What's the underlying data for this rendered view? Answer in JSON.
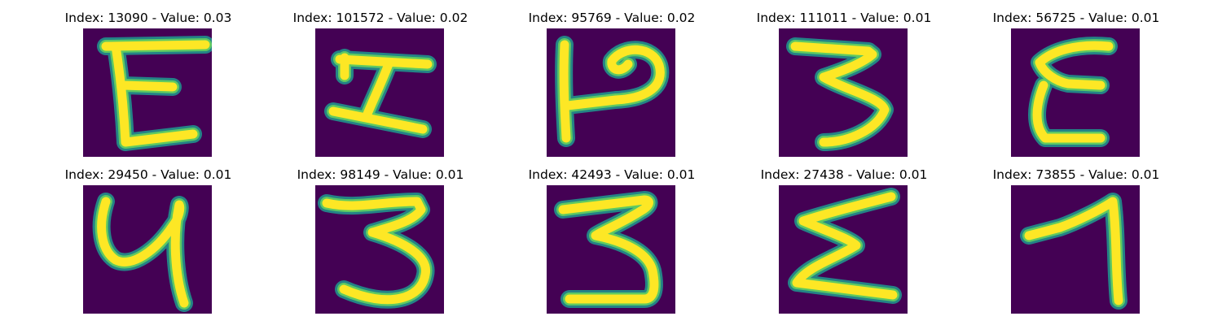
{
  "colors": {
    "background": "#440154",
    "stroke_outer": "#21918c",
    "stroke_mid": "#5ec962",
    "stroke_core": "#fde725"
  },
  "panels": [
    {
      "title": "Index: 13090 - Value: 0.03",
      "glyph": "E"
    },
    {
      "title": "Index: 101572 - Value: 0.02",
      "glyph": "I"
    },
    {
      "title": "Index: 95769 - Value: 0.02",
      "glyph": "P"
    },
    {
      "title": "Index: 111011 - Value: 0.01",
      "glyph": "3"
    },
    {
      "title": "Index: 56725 - Value: 0.01",
      "glyph": "E"
    },
    {
      "title": "Index: 29450 - Value: 0.01",
      "glyph": "4"
    },
    {
      "title": "Index: 98149 - Value: 0.01",
      "glyph": "3"
    },
    {
      "title": "Index: 42493 - Value: 0.01",
      "glyph": "3"
    },
    {
      "title": "Index: 27438 - Value: 0.01",
      "glyph": "Σ"
    },
    {
      "title": "Index: 73855 - Value: 0.01",
      "glyph": "1"
    }
  ]
}
